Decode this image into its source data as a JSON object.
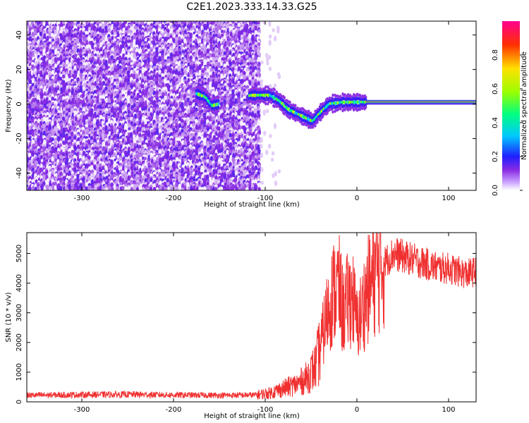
{
  "title": "C2E1.2023.333.14.33.G25",
  "chart_data": [
    {
      "type": "heatmap",
      "xlabel": "Height of straight line (km)",
      "ylabel": "Frequency (Hz)",
      "xlim": [
        -360,
        130
      ],
      "ylim": [
        -50,
        48
      ],
      "xticks": [
        -300,
        -200,
        -100,
        0,
        100
      ],
      "yticks": [
        -40,
        -20,
        0,
        20,
        40
      ],
      "grid": false,
      "colorbar": {
        "label": "Normalized spectral amplitude",
        "range": [
          0,
          1
        ],
        "ticks": [
          0.0,
          0.2,
          0.4,
          0.6,
          0.8
        ],
        "colors": [
          "#ffffff",
          "#8a2be2",
          "#1f1fff",
          "#00c8ff",
          "#00ff80",
          "#9aff00",
          "#ffe000",
          "#ff3000",
          "#ff0090"
        ]
      },
      "features": {
        "noise_region_x": [
          -360,
          -105
        ],
        "sparse_region_x": [
          -105,
          -85
        ],
        "tone_track": [
          {
            "x": -175,
            "y": 6
          },
          {
            "x": -165,
            "y": 4
          },
          {
            "x": -158,
            "y": -1
          },
          {
            "x": -115,
            "y": 5
          },
          {
            "x": -95,
            "y": 5
          },
          {
            "x": -85,
            "y": 2
          },
          {
            "x": -75,
            "y": -3
          },
          {
            "x": -60,
            "y": -7
          },
          {
            "x": -48,
            "y": -10
          },
          {
            "x": -40,
            "y": -5
          },
          {
            "x": -30,
            "y": 0
          },
          {
            "x": -15,
            "y": 1
          },
          {
            "x": 0,
            "y": 1
          },
          {
            "x": 20,
            "y": 1
          },
          {
            "x": 130,
            "y": 1
          }
        ]
      }
    },
    {
      "type": "line",
      "xlabel": "Height of straight line (km)",
      "ylabel": "SNR (10 * v/v)",
      "xlim": [
        -360,
        130
      ],
      "ylim": [
        0,
        5700
      ],
      "xticks": [
        -300,
        -200,
        -100,
        0,
        100
      ],
      "yticks": [
        0,
        1000,
        2000,
        3000,
        4000,
        5000
      ],
      "grid": false,
      "series": [
        {
          "color": "#f03030",
          "x": [
            -360,
            -300,
            -250,
            -200,
            -150,
            -110,
            -95,
            -80,
            -65,
            -55,
            -45,
            -40,
            -35,
            -30,
            -25,
            -20,
            -15,
            -10,
            -5,
            0,
            5,
            10,
            20,
            30,
            40,
            50,
            60,
            70,
            80,
            90,
            100,
            110,
            120,
            130
          ],
          "y": [
            220,
            240,
            250,
            230,
            220,
            230,
            300,
            450,
            600,
            800,
            1200,
            1800,
            2600,
            3300,
            3700,
            3900,
            3000,
            3400,
            3600,
            2600,
            3000,
            3600,
            4300,
            4700,
            5000,
            4900,
            4800,
            4700,
            4600,
            4500,
            4500,
            4400,
            4300,
            4400
          ]
        }
      ]
    }
  ]
}
